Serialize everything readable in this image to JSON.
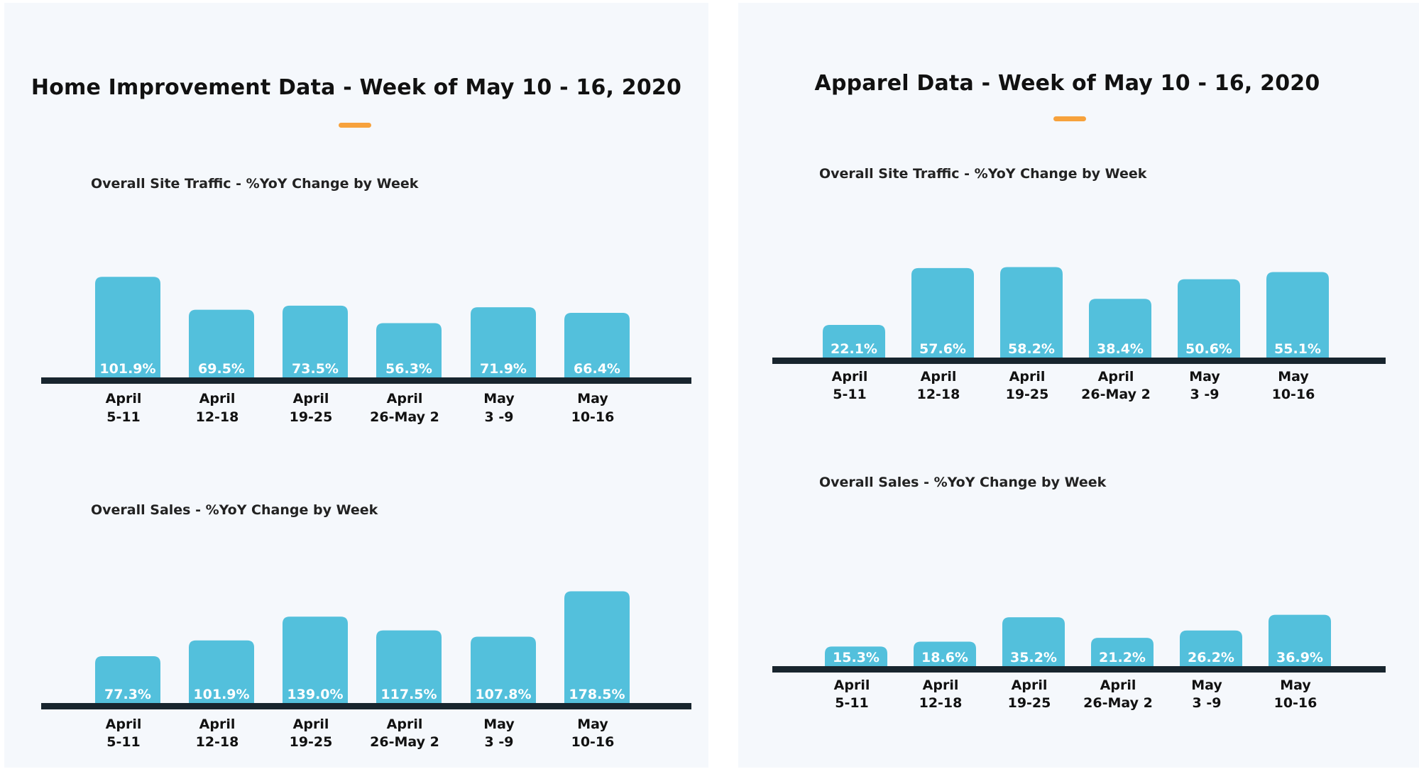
{
  "colors": {
    "bar": "#53c0dc",
    "baseline": "#18252e",
    "accent": "#f7a23c",
    "panel_bg": "#f5f8fc"
  },
  "left": {
    "title": "Home Improvement Data - Week of May 10 - 16, 2020",
    "traffic_subtitle": "Overall Site Traffic - %YoY Change by Week",
    "sales_subtitle": "Overall Sales - %YoY Change by Week"
  },
  "right": {
    "title": "Apparel Data - Week of May 10 - 16, 2020",
    "traffic_subtitle": "Overall Site Traffic - %YoY Change by Week",
    "sales_subtitle": "Overall Sales - %YoY Change by Week"
  },
  "chart_data": [
    {
      "type": "bar",
      "title": "Overall Site Traffic - %YoY Change by Week",
      "group": "Home Improvement",
      "categories": [
        [
          "April",
          "5-11"
        ],
        [
          "April",
          "12-18"
        ],
        [
          "April",
          "19-25"
        ],
        [
          "April",
          "26-May 2"
        ],
        [
          "May",
          "3 -9"
        ],
        [
          "May",
          "10-16"
        ]
      ],
      "values": [
        101.9,
        69.5,
        73.5,
        56.3,
        71.9,
        66.4
      ],
      "labels": [
        "101.9%",
        "69.5%",
        "73.5%",
        "56.3%",
        "71.9%",
        "66.4%"
      ],
      "xlabel": "",
      "ylabel": ""
    },
    {
      "type": "bar",
      "title": "Overall Sales - %YoY Change by Week",
      "group": "Home Improvement",
      "categories": [
        [
          "April",
          "5-11"
        ],
        [
          "April",
          "12-18"
        ],
        [
          "April",
          "19-25"
        ],
        [
          "April",
          "26-May 2"
        ],
        [
          "May",
          "3 -9"
        ],
        [
          "May",
          "10-16"
        ]
      ],
      "values": [
        77.3,
        101.9,
        139.0,
        117.5,
        107.8,
        178.5
      ],
      "labels": [
        "77.3%",
        "101.9%",
        "139.0%",
        "117.5%",
        "107.8%",
        "178.5%"
      ],
      "xlabel": "",
      "ylabel": ""
    },
    {
      "type": "bar",
      "title": "Overall Site Traffic - %YoY Change by Week",
      "group": "Apparel",
      "categories": [
        [
          "April",
          "5-11"
        ],
        [
          "April",
          "12-18"
        ],
        [
          "April",
          "19-25"
        ],
        [
          "April",
          "26-May 2"
        ],
        [
          "May",
          "3 -9"
        ],
        [
          "May",
          "10-16"
        ]
      ],
      "values": [
        22.1,
        57.6,
        58.2,
        38.4,
        50.6,
        55.1
      ],
      "labels": [
        "22.1%",
        "57.6%",
        "58.2%",
        "38.4%",
        "50.6%",
        "55.1%"
      ],
      "xlabel": "",
      "ylabel": ""
    },
    {
      "type": "bar",
      "title": "Overall Sales - %YoY Change by Week",
      "group": "Apparel",
      "categories": [
        [
          "April",
          "5-11"
        ],
        [
          "April",
          "12-18"
        ],
        [
          "April",
          "19-25"
        ],
        [
          "April",
          "26-May 2"
        ],
        [
          "May",
          "3 -9"
        ],
        [
          "May",
          "10-16"
        ]
      ],
      "values": [
        15.3,
        18.6,
        35.2,
        21.2,
        26.2,
        36.9
      ],
      "labels": [
        "15.3%",
        "18.6%",
        "35.2%",
        "21.2%",
        "26.2%",
        "36.9%"
      ],
      "xlabel": "",
      "ylabel": ""
    }
  ]
}
